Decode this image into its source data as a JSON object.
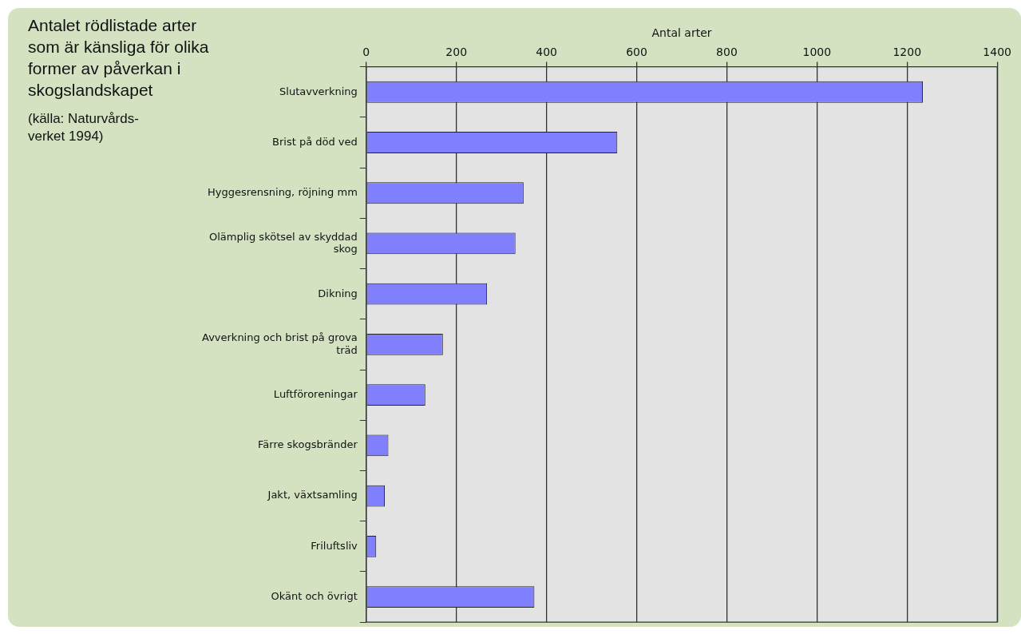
{
  "chart_data": {
    "type": "bar",
    "orientation": "horizontal",
    "title": "Antalet rödlistade arter som är känsliga för olika former av påverkan i skogslandskapet",
    "xlabel": "Antal arter",
    "categories": [
      "Slutavverkning",
      "Brist på död ved",
      "Hyggesrensning, röjning mm",
      "Olämplig skötsel av skyddad skog",
      "Dikning",
      "Avverkning och brist på grova träd",
      "Luftföroreningar",
      "Färre skogsbränder",
      "Jakt, växtsamling",
      "Friluftsliv",
      "Okänt och övrigt"
    ],
    "values": [
      1235,
      557,
      349,
      331,
      268,
      170,
      131,
      49,
      41,
      22,
      373
    ],
    "color": "#8080ff",
    "xlim": [
      0,
      1400
    ],
    "xticks": [
      0,
      200,
      400,
      600,
      800,
      1000,
      1200,
      1400
    ],
    "grid": "x",
    "legend": false,
    "annotations": [
      "(källa: Naturvårds-verket 1994)"
    ]
  }
}
